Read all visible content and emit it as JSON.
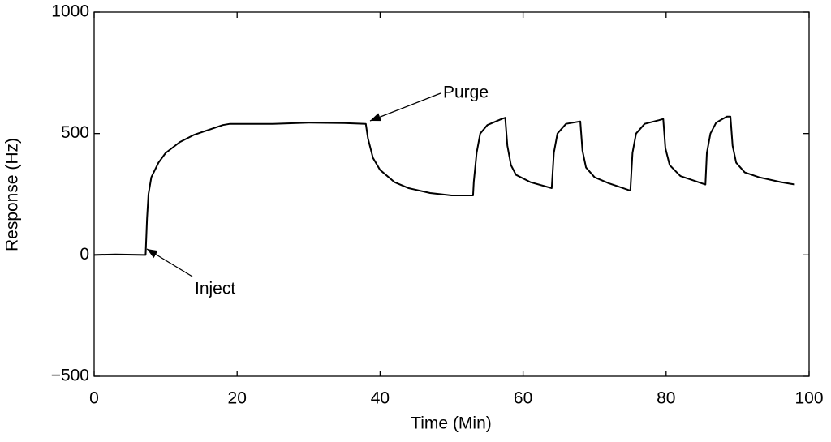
{
  "chart_data": {
    "type": "line",
    "xlabel": "Time (Min)",
    "ylabel": "Response (Hz)",
    "x": [
      0,
      3,
      7,
      7.2,
      7.4,
      7.6,
      8,
      9,
      10,
      12,
      14,
      16,
      18,
      19,
      25,
      30,
      35,
      38,
      38.3,
      39,
      40,
      42,
      44,
      47,
      50,
      53,
      53.1,
      53.5,
      54,
      55,
      57,
      57.5,
      57.8,
      58.3,
      59,
      61,
      64,
      64.3,
      64.8,
      66,
      68,
      68.3,
      68.8,
      70,
      72,
      75,
      75.3,
      75.8,
      77,
      79,
      79.6,
      79.9,
      80.5,
      82,
      84,
      85.5,
      85.7,
      86.2,
      87,
      88.5,
      89,
      89.3,
      89.8,
      91,
      93,
      96,
      98
    ],
    "series": [
      {
        "color": "#000000",
        "values": [
          0,
          2,
          0,
          0,
          150,
          250,
          320,
          380,
          420,
          465,
          495,
          515,
          535,
          540,
          540,
          545,
          543,
          540,
          480,
          400,
          350,
          300,
          275,
          255,
          245,
          245,
          300,
          420,
          500,
          535,
          560,
          565,
          450,
          370,
          330,
          300,
          275,
          420,
          500,
          540,
          550,
          430,
          360,
          320,
          295,
          265,
          420,
          500,
          540,
          555,
          560,
          440,
          370,
          325,
          305,
          290,
          420,
          500,
          545,
          570,
          570,
          450,
          380,
          340,
          320,
          300,
          290
        ]
      }
    ],
    "xlim": [
      0,
      100
    ],
    "xticks": [
      0,
      20,
      40,
      60,
      80,
      100
    ],
    "ylim": [
      -500,
      1000
    ],
    "yticks": [
      {
        "value": -500,
        "label": "−500"
      },
      0,
      500,
      1000
    ],
    "annotations": [
      "Inject",
      "Purge"
    ]
  }
}
